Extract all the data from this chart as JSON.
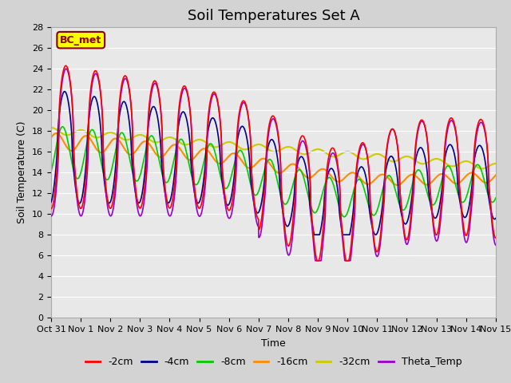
{
  "title": "Soil Temperatures Set A",
  "xlabel": "Time",
  "ylabel": "Soil Temperature (C)",
  "ylim": [
    0,
    28
  ],
  "yticks": [
    0,
    2,
    4,
    6,
    8,
    10,
    12,
    14,
    16,
    18,
    20,
    22,
    24,
    26,
    28
  ],
  "xtick_labels": [
    "Oct 31",
    "Nov 1",
    "Nov 2",
    "Nov 3",
    "Nov 4",
    "Nov 5",
    "Nov 6",
    "Nov 7",
    "Nov 8",
    "Nov 9",
    "Nov 10",
    "Nov 11",
    "Nov 12",
    "Nov 13",
    "Nov 14",
    "Nov 15"
  ],
  "colors": {
    "-2cm": "#ff0000",
    "-4cm": "#00008b",
    "-8cm": "#00cc00",
    "-16cm": "#ff8c00",
    "-32cm": "#cccc00",
    "Theta_Temp": "#9900cc"
  },
  "annotation_text": "BC_met",
  "annotation_color": "#8b0000",
  "annotation_bg": "#ffff00",
  "background_color": "#d3d3d3",
  "plot_bg_color": "#e8e8e8",
  "grid_color": "#ffffff",
  "title_fontsize": 13,
  "axis_label_fontsize": 9,
  "tick_fontsize": 8,
  "legend_fontsize": 9
}
